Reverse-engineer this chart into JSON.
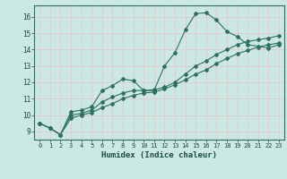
{
  "xlabel": "Humidex (Indice chaleur)",
  "bg_color": "#cce8e4",
  "grid_color": "#e8c8c8",
  "line_color": "#2e7060",
  "xlim": [
    -0.5,
    23.5
  ],
  "ylim": [
    8.5,
    16.7
  ],
  "xticks": [
    0,
    1,
    2,
    3,
    4,
    5,
    6,
    7,
    8,
    9,
    10,
    11,
    12,
    13,
    14,
    15,
    16,
    17,
    18,
    19,
    20,
    21,
    22,
    23
  ],
  "yticks": [
    9,
    10,
    11,
    12,
    13,
    14,
    15,
    16
  ],
  "line1_x": [
    0,
    1,
    2,
    3,
    4,
    5,
    6,
    7,
    8,
    9,
    10,
    11,
    12,
    13,
    14,
    15,
    16,
    17,
    18,
    19,
    20,
    21,
    22,
    23
  ],
  "line1_y": [
    9.5,
    9.2,
    8.8,
    10.2,
    10.3,
    10.5,
    11.5,
    11.8,
    12.2,
    12.1,
    11.5,
    11.5,
    13.0,
    13.8,
    15.2,
    16.2,
    16.25,
    15.8,
    15.1,
    14.8,
    14.3,
    14.2,
    14.1,
    14.3
  ],
  "line2_x": [
    0,
    1,
    2,
    3,
    4,
    5,
    6,
    7,
    8,
    9,
    10,
    11,
    12,
    13,
    14,
    15,
    16,
    17,
    18,
    19,
    20,
    21,
    22,
    23
  ],
  "line2_y": [
    9.5,
    9.2,
    8.8,
    10.0,
    10.1,
    10.3,
    10.8,
    11.1,
    11.35,
    11.5,
    11.5,
    11.55,
    11.7,
    12.0,
    12.5,
    13.0,
    13.3,
    13.7,
    14.0,
    14.3,
    14.5,
    14.6,
    14.7,
    14.85
  ],
  "line3_x": [
    0,
    1,
    2,
    3,
    4,
    5,
    6,
    7,
    8,
    9,
    10,
    11,
    12,
    13,
    14,
    15,
    16,
    17,
    18,
    19,
    20,
    21,
    22,
    23
  ],
  "line3_y": [
    9.5,
    9.2,
    8.8,
    9.8,
    10.0,
    10.15,
    10.45,
    10.7,
    11.0,
    11.2,
    11.35,
    11.4,
    11.6,
    11.85,
    12.15,
    12.5,
    12.75,
    13.15,
    13.45,
    13.75,
    13.95,
    14.15,
    14.3,
    14.4
  ]
}
